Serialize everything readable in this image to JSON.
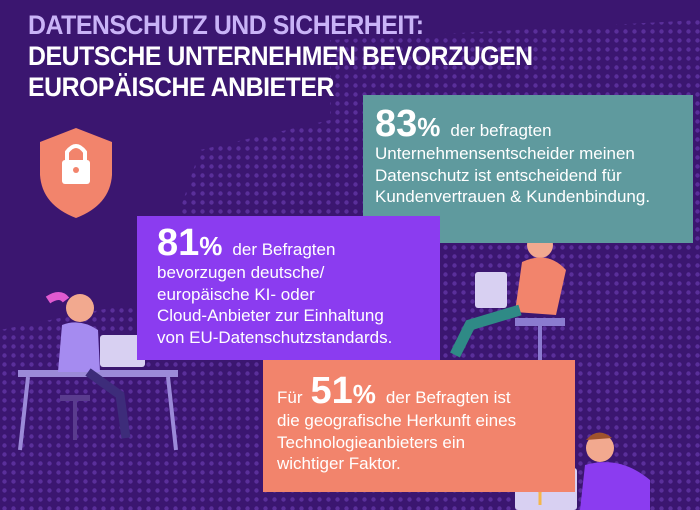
{
  "header": {
    "title_lines": [
      "DATENSCHUTZ UND SICHERHEIT:",
      "DEUTSCHE UNTERNEHMEN BEVORZUGEN",
      "EUROPÄISCHE ANBIETER"
    ]
  },
  "stats": [
    {
      "number": "83",
      "suffix": "%",
      "lines": [
        "der befragten",
        "Unternehmensentscheider meinen",
        "Datenschutz ist entscheidend für",
        "Kundenvertrauen & Kundenbindung."
      ]
    },
    {
      "number": "81",
      "suffix": "%",
      "lines": [
        "der Befragten",
        "bevorzugen deutsche/",
        "europäische KI- oder",
        "Cloud-Anbieter zur Einhaltung",
        "von EU-Datenschutzstandards."
      ]
    },
    {
      "prefix": "Für",
      "number": "51",
      "suffix": "%",
      "lines": [
        "der Befragten ist",
        "die geografische Herkunft eines",
        "Technologieanbieters ein",
        "wichtiger Faktor."
      ]
    }
  ]
}
